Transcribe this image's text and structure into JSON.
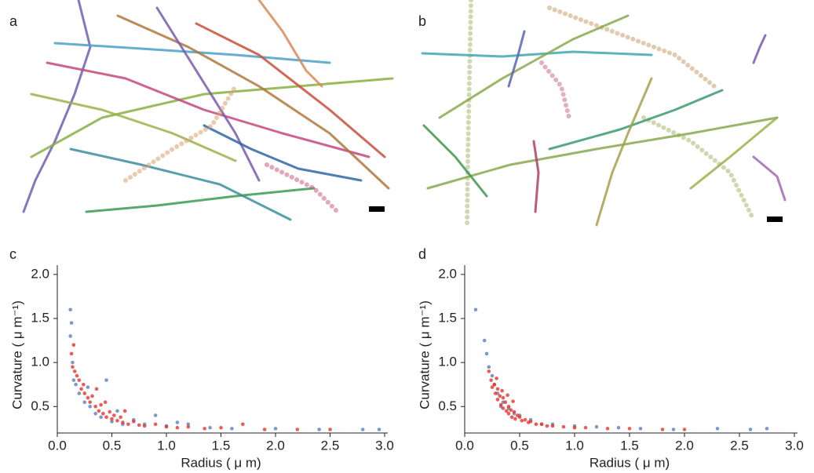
{
  "images": [
    {
      "label": "a"
    },
    {
      "label": "b"
    }
  ],
  "chart_data": [
    {
      "type": "scatter",
      "label": "c",
      "xlabel": "Radius ( μ m)",
      "ylabel": "Curvature ( μ m⁻¹)",
      "xlim": [
        0,
        3.0
      ],
      "ylim": [
        0.2,
        2.15
      ],
      "xticks": [
        {
          "value": 0,
          "label": "0.0"
        },
        0.5,
        {
          "value": 1,
          "label": "1.0"
        },
        1.5,
        {
          "value": 2,
          "label": "2.0"
        },
        2.5,
        {
          "value": 3,
          "label": "3.0"
        }
      ],
      "yticks": [
        0.5,
        {
          "value": 1,
          "label": "1.0"
        },
        1.5,
        {
          "value": 2,
          "label": "2.0"
        }
      ],
      "series": [
        {
          "color": "#5b7fb8",
          "x": [
            0.12,
            0.13,
            0.12,
            0.14,
            0.15,
            0.17,
            0.2,
            0.25,
            0.3,
            0.35,
            0.4,
            0.5,
            0.6,
            0.7,
            0.8,
            1.0,
            1.2,
            1.4,
            1.6,
            2.0,
            2.4,
            2.8,
            2.95,
            0.45,
            0.9,
            0.28,
            0.55,
            1.1
          ],
          "values": [
            1.6,
            1.45,
            1.3,
            1.0,
            0.8,
            0.75,
            0.65,
            0.55,
            0.5,
            0.42,
            0.38,
            0.33,
            0.3,
            0.35,
            0.3,
            0.28,
            0.3,
            0.26,
            0.25,
            0.25,
            0.24,
            0.24,
            0.24,
            0.8,
            0.4,
            0.72,
            0.45,
            0.32
          ]
        },
        {
          "color": "#e8322a",
          "x": [
            0.13,
            0.14,
            0.15,
            0.16,
            0.18,
            0.2,
            0.22,
            0.24,
            0.25,
            0.28,
            0.3,
            0.32,
            0.35,
            0.38,
            0.4,
            0.42,
            0.45,
            0.48,
            0.5,
            0.52,
            0.55,
            0.58,
            0.6,
            0.65,
            0.7,
            0.75,
            0.8,
            0.9,
            1.0,
            1.1,
            1.2,
            1.35,
            1.5,
            1.7,
            1.9,
            2.2,
            2.5,
            0.36,
            0.44,
            0.62
          ],
          "values": [
            1.1,
            0.95,
            1.2,
            0.9,
            0.85,
            0.8,
            0.7,
            0.75,
            0.65,
            0.6,
            0.55,
            0.62,
            0.5,
            0.45,
            0.52,
            0.42,
            0.38,
            0.44,
            0.36,
            0.4,
            0.34,
            0.38,
            0.32,
            0.3,
            0.33,
            0.29,
            0.28,
            0.3,
            0.27,
            0.26,
            0.27,
            0.25,
            0.26,
            0.3,
            0.24,
            0.24,
            0.24,
            0.7,
            0.55,
            0.45
          ]
        }
      ]
    },
    {
      "type": "scatter",
      "label": "d",
      "xlabel": "Radius ( μ m)",
      "ylabel": "Curvature ( μ m⁻¹)",
      "xlim": [
        0,
        3.0
      ],
      "ylim": [
        0.2,
        2.15
      ],
      "xticks": [
        {
          "value": 0,
          "label": "0.0"
        },
        0.5,
        {
          "value": 1,
          "label": "1.0"
        },
        1.5,
        {
          "value": 2,
          "label": "2.0"
        },
        2.5,
        {
          "value": 3,
          "label": "3.0"
        }
      ],
      "yticks": [
        0.5,
        {
          "value": 1,
          "label": "1.0"
        },
        1.5,
        {
          "value": 2,
          "label": "2.0"
        }
      ],
      "series": [
        {
          "color": "#5b7fb8",
          "x": [
            0.1,
            0.18,
            0.2,
            0.22,
            0.25,
            0.27,
            0.3,
            0.35,
            0.4,
            0.5,
            0.6,
            0.7,
            0.8,
            1.0,
            1.2,
            1.4,
            1.6,
            1.9,
            2.3,
            2.6,
            2.75,
            0.33,
            0.45
          ],
          "values": [
            1.6,
            1.25,
            1.1,
            0.95,
            0.85,
            0.75,
            0.65,
            0.55,
            0.48,
            0.4,
            0.35,
            0.3,
            0.3,
            0.28,
            0.27,
            0.26,
            0.25,
            0.24,
            0.25,
            0.24,
            0.25,
            0.5,
            0.42
          ]
        },
        {
          "color": "#e8322a",
          "x": [
            0.22,
            0.24,
            0.25,
            0.27,
            0.28,
            0.3,
            0.3,
            0.32,
            0.33,
            0.35,
            0.35,
            0.37,
            0.38,
            0.4,
            0.4,
            0.42,
            0.43,
            0.45,
            0.46,
            0.48,
            0.5,
            0.52,
            0.55,
            0.58,
            0.6,
            0.65,
            0.7,
            0.75,
            0.8,
            0.9,
            1.0,
            1.1,
            1.3,
            1.5,
            1.8,
            2.0,
            0.29,
            0.34,
            0.39,
            0.44
          ],
          "values": [
            0.9,
            0.8,
            0.72,
            0.75,
            0.65,
            0.7,
            0.58,
            0.62,
            0.52,
            0.6,
            0.48,
            0.55,
            0.45,
            0.5,
            0.42,
            0.46,
            0.38,
            0.44,
            0.36,
            0.4,
            0.38,
            0.34,
            0.35,
            0.32,
            0.33,
            0.3,
            0.3,
            0.28,
            0.28,
            0.27,
            0.26,
            0.26,
            0.25,
            0.25,
            0.24,
            0.24,
            0.82,
            0.68,
            0.63,
            0.56
          ]
        }
      ]
    }
  ]
}
